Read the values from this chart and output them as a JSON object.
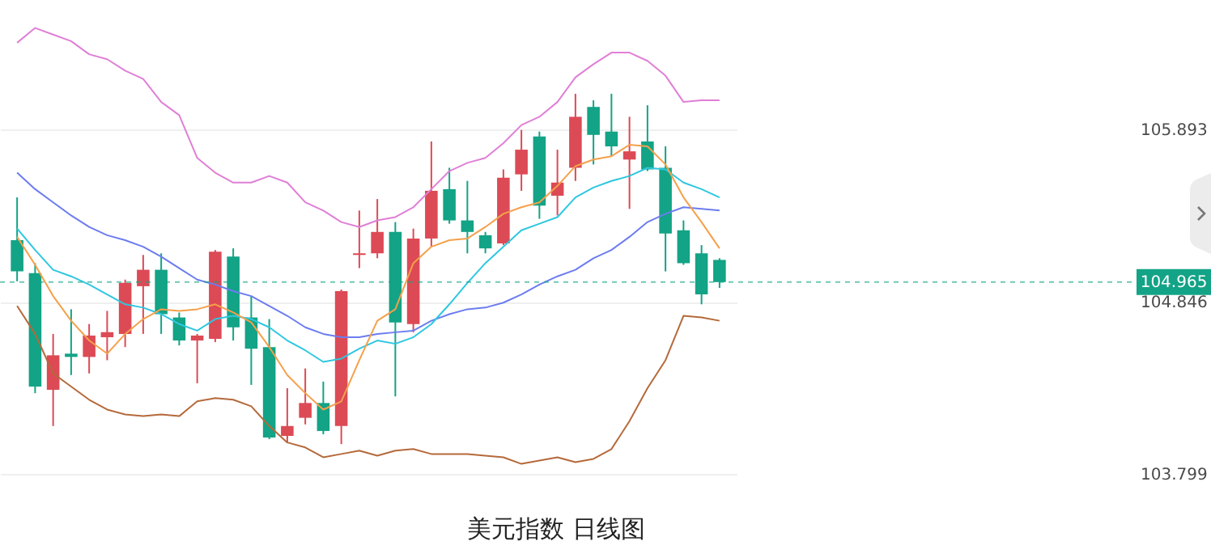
{
  "chart_data": {
    "type": "candlestick",
    "title": "美元指数 日线图",
    "categories": [
      null,
      null,
      null,
      null,
      null,
      null,
      null,
      null,
      null,
      null,
      null,
      null,
      null,
      null,
      null,
      null,
      null,
      null,
      null,
      null,
      null,
      null,
      null,
      null,
      null,
      null,
      null,
      null,
      null,
      null,
      null,
      null,
      null,
      null,
      null,
      null,
      null,
      null,
      null,
      null
    ],
    "ohlc": [
      [
        105.22,
        105.48,
        104.97,
        105.03
      ],
      [
        105.02,
        105.08,
        104.29,
        104.33
      ],
      [
        104.31,
        104.65,
        104.09,
        104.52
      ],
      [
        104.53,
        104.8,
        104.4,
        104.51
      ],
      [
        104.51,
        104.71,
        104.41,
        104.64
      ],
      [
        104.63,
        104.79,
        104.49,
        104.66
      ],
      [
        104.65,
        104.98,
        104.57,
        104.96
      ],
      [
        104.94,
        105.13,
        104.65,
        105.04
      ],
      [
        105.04,
        105.14,
        104.65,
        104.77
      ],
      [
        104.75,
        104.78,
        104.58,
        104.61
      ],
      [
        104.61,
        104.65,
        104.35,
        104.64
      ],
      [
        104.62,
        105.16,
        104.6,
        105.15
      ],
      [
        105.12,
        105.17,
        104.61,
        104.69
      ],
      [
        104.75,
        104.88,
        104.34,
        104.56
      ],
      [
        104.57,
        104.74,
        104.01,
        104.02
      ],
      [
        104.03,
        104.32,
        103.99,
        104.09
      ],
      [
        104.14,
        104.44,
        104.1,
        104.23
      ],
      [
        104.23,
        104.36,
        104.04,
        104.06
      ],
      [
        104.09,
        104.92,
        103.98,
        104.91
      ],
      [
        105.13,
        105.4,
        105.05,
        105.14
      ],
      [
        105.14,
        105.47,
        105.11,
        105.27
      ],
      [
        105.27,
        105.33,
        104.27,
        104.72
      ],
      [
        104.71,
        105.29,
        104.66,
        105.23
      ],
      [
        105.23,
        105.82,
        105.18,
        105.52
      ],
      [
        105.53,
        105.66,
        105.32,
        105.34
      ],
      [
        105.34,
        105.58,
        105.14,
        105.27
      ],
      [
        105.25,
        105.27,
        105.14,
        105.17
      ],
      [
        105.2,
        105.65,
        105.19,
        105.6
      ],
      [
        105.62,
        105.89,
        105.52,
        105.77
      ],
      [
        105.85,
        105.88,
        105.35,
        105.43
      ],
      [
        105.49,
        105.77,
        105.37,
        105.57
      ],
      [
        105.66,
        106.11,
        105.58,
        105.97
      ],
      [
        106.03,
        106.07,
        105.68,
        105.86
      ],
      [
        105.88,
        106.11,
        105.73,
        105.79
      ],
      [
        105.71,
        105.97,
        105.41,
        105.76
      ],
      [
        105.82,
        106.04,
        105.64,
        105.65
      ],
      [
        105.66,
        105.79,
        105.03,
        105.26
      ],
      [
        105.28,
        105.34,
        105.07,
        105.08
      ],
      [
        105.14,
        105.19,
        104.83,
        104.89
      ],
      [
        105.1,
        105.11,
        104.93,
        104.965
      ]
    ],
    "colors": [
      "#13a386",
      "#13a386",
      "#dc4a55",
      "#13a386",
      "#dc4a55",
      "#dc4a55",
      "#dc4a55",
      "#dc4a55",
      "#13a386",
      "#13a386",
      "#dc4a55",
      "#dc4a55",
      "#13a386",
      "#13a386",
      "#13a386",
      "#dc4a55",
      "#dc4a55",
      "#13a386",
      "#dc4a55",
      "#dc4a55",
      "#dc4a55",
      "#13a386",
      "#dc4a55",
      "#dc4a55",
      "#13a386",
      "#13a386",
      "#13a386",
      "#dc4a55",
      "#dc4a55",
      "#13a386",
      "#dc4a55",
      "#dc4a55",
      "#13a386",
      "#13a386",
      "#dc4a55",
      "#13a386",
      "#13a386",
      "#13a386",
      "#13a386",
      "#13a386"
    ],
    "series": [
      {
        "type": "line",
        "color": "#e07fd6",
        "values": [
          106.42,
          106.51,
          106.47,
          106.43,
          106.35,
          106.32,
          106.25,
          106.2,
          106.06,
          105.98,
          105.72,
          105.63,
          105.57,
          105.57,
          105.61,
          105.57,
          105.45,
          105.4,
          105.33,
          105.3,
          105.34,
          105.36,
          105.42,
          105.53,
          105.64,
          105.69,
          105.72,
          105.81,
          105.92,
          105.97,
          106.06,
          106.21,
          106.29,
          106.36,
          106.36,
          106.31,
          106.22,
          106.06,
          106.07,
          106.07
        ]
      },
      {
        "type": "line",
        "color": "#b5693a",
        "values": [
          104.82,
          104.65,
          104.41,
          104.33,
          104.25,
          104.19,
          104.16,
          104.15,
          104.16,
          104.15,
          104.24,
          104.26,
          104.25,
          104.21,
          104.09,
          103.99,
          103.96,
          103.9,
          103.92,
          103.94,
          103.91,
          103.94,
          103.95,
          103.92,
          103.92,
          103.92,
          103.91,
          103.9,
          103.86,
          103.88,
          103.9,
          103.87,
          103.89,
          103.95,
          104.12,
          104.32,
          104.49,
          104.76,
          104.75,
          104.73
        ]
      },
      {
        "type": "line",
        "color": "#6c7cf0",
        "values": [
          105.63,
          105.53,
          105.45,
          105.37,
          105.3,
          105.25,
          105.22,
          105.18,
          105.12,
          105.05,
          104.98,
          104.95,
          104.91,
          104.88,
          104.82,
          104.76,
          104.69,
          104.65,
          104.63,
          104.63,
          104.65,
          104.66,
          104.67,
          104.73,
          104.77,
          104.8,
          104.81,
          104.84,
          104.89,
          104.95,
          105.0,
          105.04,
          105.11,
          105.16,
          105.24,
          105.33,
          105.38,
          105.42,
          105.41,
          105.4
        ]
      },
      {
        "type": "line",
        "color": "#2ec7e0",
        "values": [
          105.29,
          105.16,
          105.04,
          105.0,
          104.95,
          104.89,
          104.83,
          104.81,
          104.77,
          104.71,
          104.67,
          104.74,
          104.76,
          104.74,
          104.69,
          104.61,
          104.55,
          104.48,
          104.5,
          104.56,
          104.61,
          104.59,
          104.63,
          104.71,
          104.83,
          104.96,
          105.08,
          105.18,
          105.28,
          105.32,
          105.36,
          105.48,
          105.54,
          105.58,
          105.61,
          105.66,
          105.65,
          105.57,
          105.53,
          105.48
        ]
      },
      {
        "type": "line",
        "color": "#f5a04a",
        "values": [
          105.24,
          105.07,
          104.88,
          104.73,
          104.61,
          104.53,
          104.65,
          104.74,
          104.8,
          104.79,
          104.8,
          104.83,
          104.78,
          104.72,
          104.57,
          104.4,
          104.29,
          104.19,
          104.24,
          104.49,
          104.73,
          104.8,
          105.08,
          105.18,
          105.22,
          105.23,
          105.3,
          105.38,
          105.42,
          105.45,
          105.55,
          105.67,
          105.71,
          105.73,
          105.8,
          105.79,
          105.68,
          105.48,
          105.33,
          105.17
        ]
      }
    ],
    "ylim": [
      103.799,
      106.68
    ],
    "yticks": [
      105.893,
      104.846,
      103.799
    ],
    "grid": "y",
    "tick_labels": "y",
    "ref_lines": [
      {
        "axis": "y",
        "value": 104.965,
        "label": "104.965",
        "color": "#13a386",
        "line_style": "dashed"
      }
    ]
  }
}
